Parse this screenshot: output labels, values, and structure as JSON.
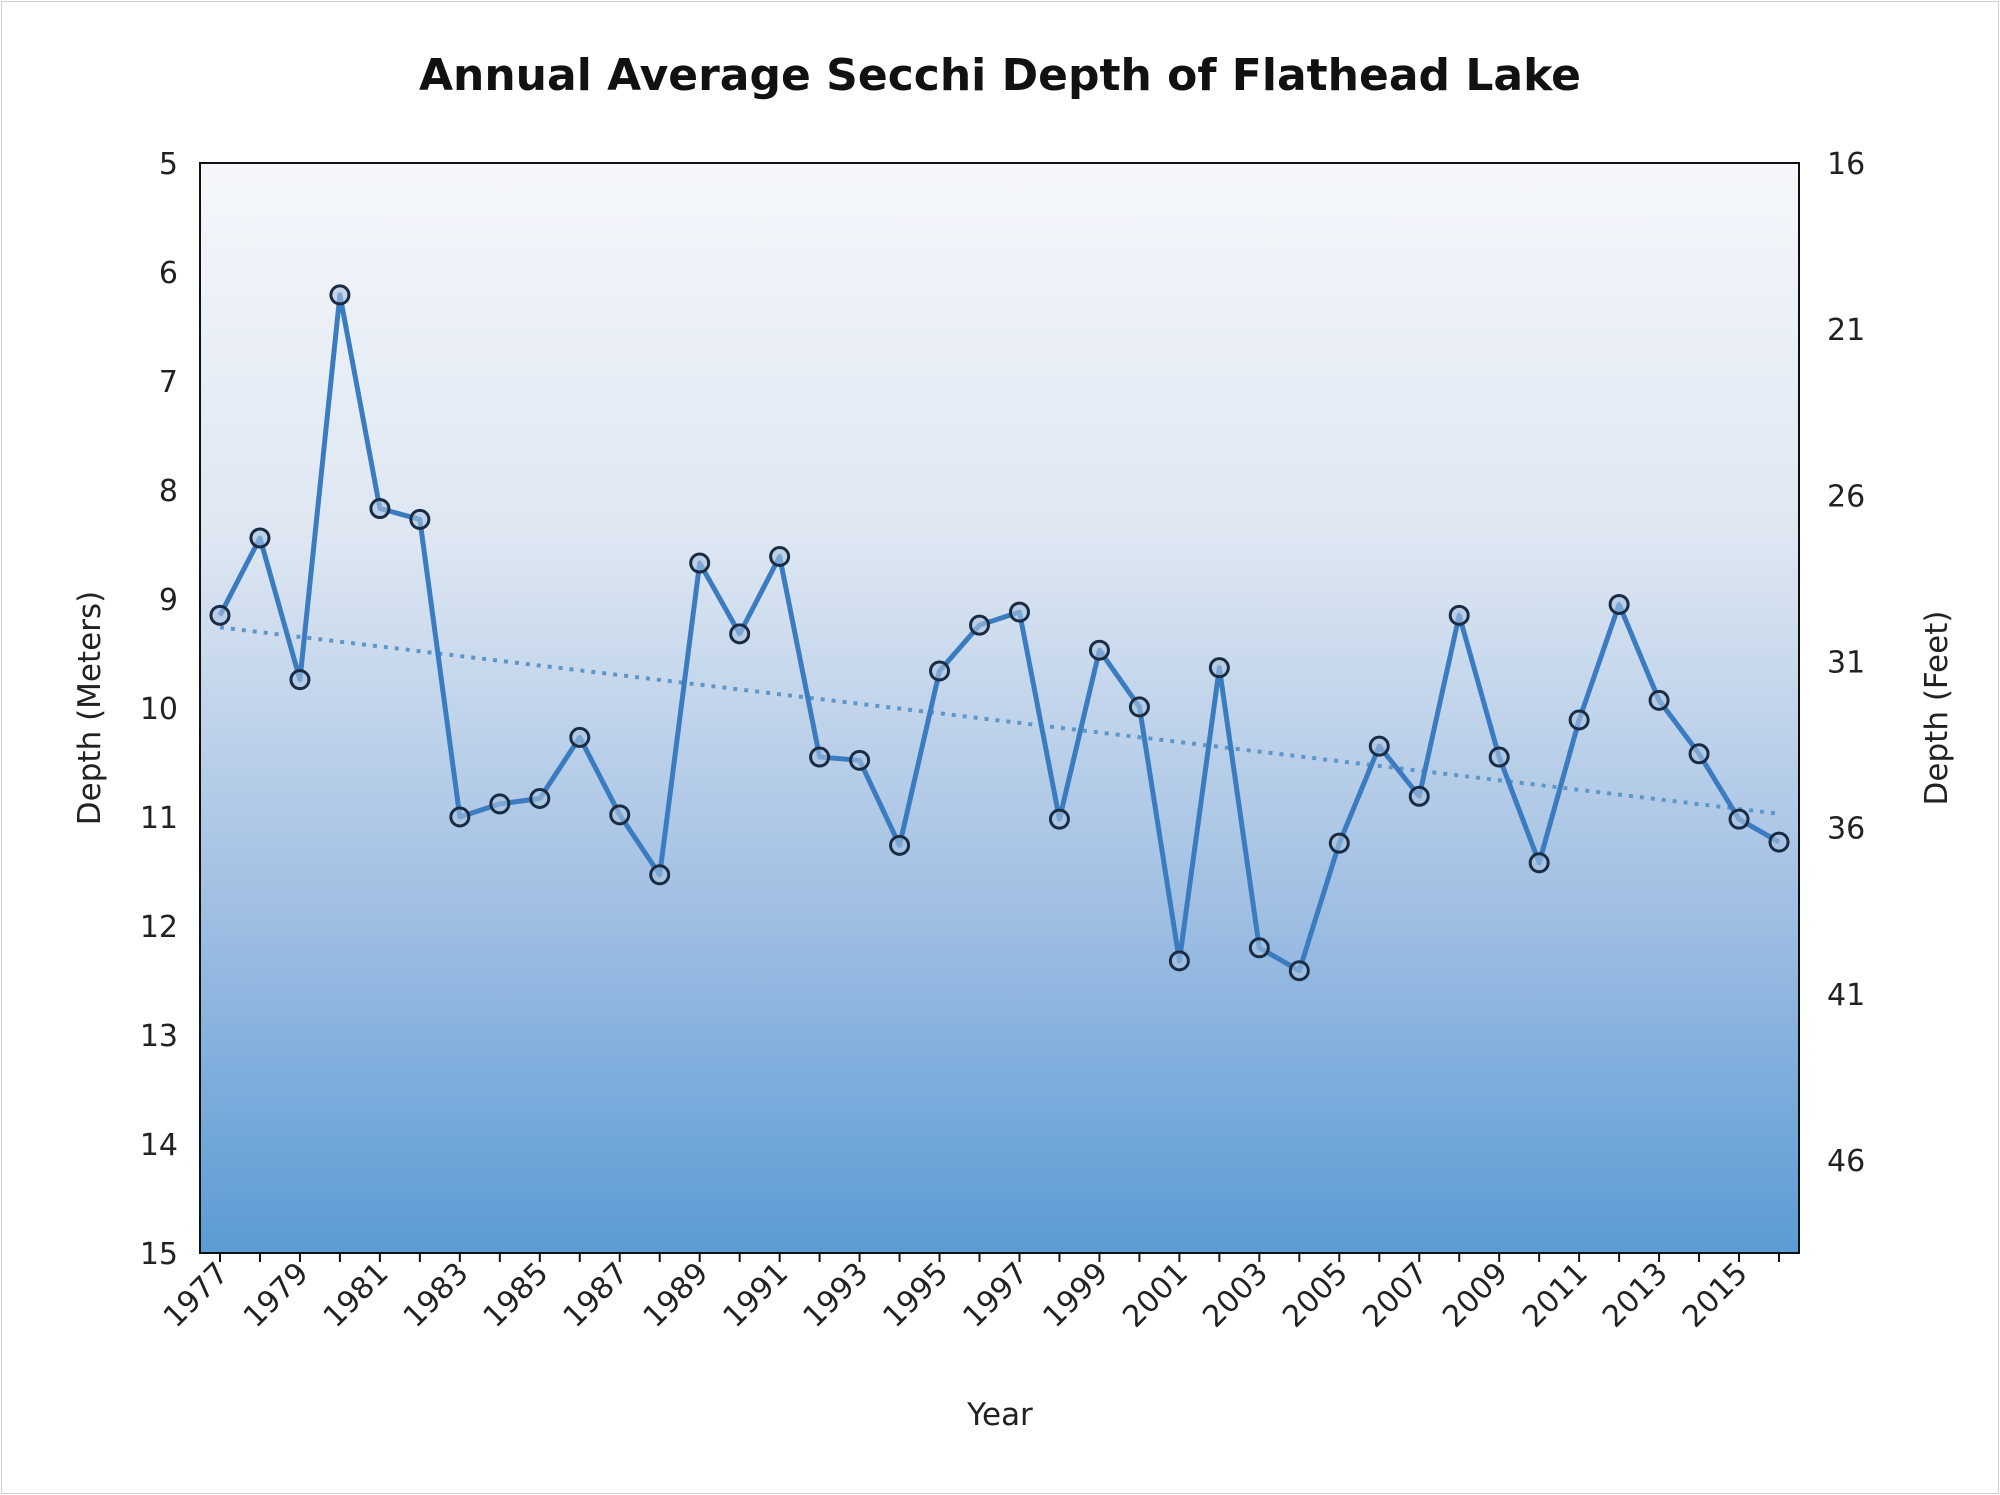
{
  "chart_data": {
    "type": "line",
    "title": "Annual Average Secchi Depth of Flathead Lake",
    "xlabel": "Year",
    "ylabel": "Depth  (Meters)",
    "ylabel_right": "Depth  (Feet)",
    "ylim": [
      15,
      5
    ],
    "y_inverted": true,
    "yticks": [
      5,
      6,
      7,
      8,
      9,
      10,
      11,
      12,
      13,
      14,
      15
    ],
    "ylim_right_feet": [
      16.4,
      49.2
    ],
    "yticks_right": [
      "16",
      "21",
      "26",
      "31",
      "36",
      "41",
      "46"
    ],
    "xlim": [
      1976.5,
      2016.5
    ],
    "xtick_labels": [
      "1977",
      "1979",
      "1981",
      "1983",
      "1985",
      "1987",
      "1989",
      "1991",
      "1993",
      "1995",
      "1997",
      "1999",
      "2001",
      "2003",
      "2005",
      "2007",
      "2009",
      "2011",
      "2013",
      "2015"
    ],
    "grid": false,
    "legend": "none",
    "background": "vertical gradient white to blue",
    "colors": {
      "line": "#3b7cc0",
      "marker_edge": "#1a2c44",
      "trend": "#5f96c8",
      "gradient_top": "#f5f7fb",
      "gradient_bottom": "#5b9bd5"
    },
    "x": [
      1977,
      1978,
      1979,
      1980,
      1981,
      1982,
      1983,
      1984,
      1985,
      1986,
      1987,
      1988,
      1989,
      1990,
      1991,
      1992,
      1993,
      1994,
      1995,
      1996,
      1997,
      1998,
      1999,
      2000,
      2001,
      2002,
      2003,
      2004,
      2005,
      2006,
      2007,
      2008,
      2009,
      2010,
      2011,
      2012,
      2013,
      2014,
      2015,
      2016
    ],
    "series": [
      {
        "values": [
          9.15,
          8.44,
          9.74,
          6.21,
          8.17,
          8.27,
          11.0,
          10.88,
          10.83,
          10.27,
          10.98,
          11.53,
          8.67,
          9.32,
          8.61,
          10.45,
          10.48,
          11.26,
          9.66,
          9.24,
          9.12,
          11.02,
          9.47,
          9.99,
          12.32,
          9.63,
          12.2,
          12.41,
          11.24,
          10.35,
          10.81,
          9.15,
          10.45,
          11.42,
          10.11,
          9.05,
          9.93,
          10.42,
          11.02,
          11.23
        ]
      }
    ],
    "trendline": {
      "style": "dotted linear",
      "start": [
        1977,
        9.26
      ],
      "end": [
        2016,
        10.97
      ]
    }
  }
}
